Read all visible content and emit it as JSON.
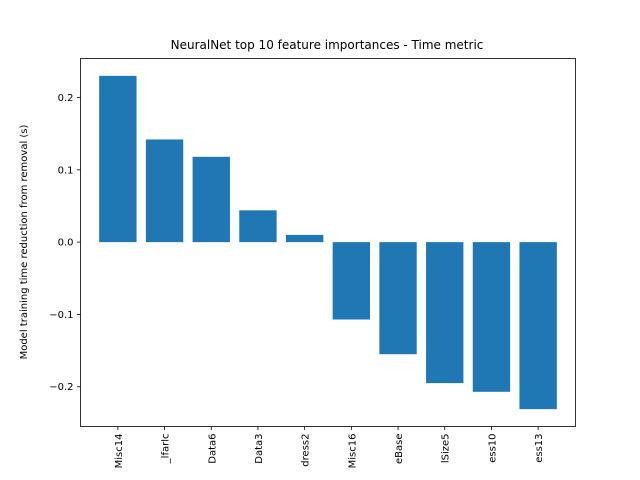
{
  "chart_data": {
    "type": "bar",
    "title": "NeuralNet top 10 feature importances - Time metric",
    "xlabel": "",
    "ylabel": "Model training time reduction from removal (s)",
    "categories": [
      "Misc14",
      "_lfarlc",
      "Data6",
      "Data3",
      "dress2",
      "Misc16",
      "eBase",
      "lSize5",
      "ess10",
      "ess13"
    ],
    "values": [
      0.23,
      0.142,
      0.118,
      0.044,
      0.01,
      -0.107,
      -0.155,
      -0.195,
      -0.207,
      -0.231
    ],
    "ylim": [
      -0.255,
      0.254
    ],
    "yticks": [
      -0.2,
      -0.1,
      0.0,
      0.1,
      0.2
    ],
    "ytick_labels": [
      "−0.2",
      "−0.1",
      "0.0",
      "0.1",
      "0.2"
    ],
    "bar_color": "#1f77b4",
    "grid": false,
    "legend": "none"
  }
}
